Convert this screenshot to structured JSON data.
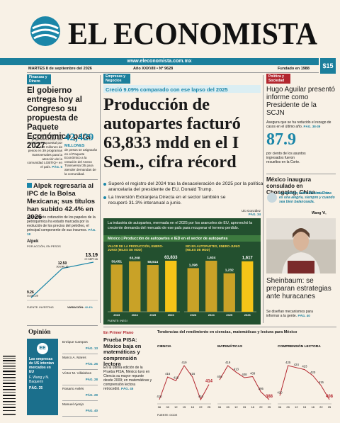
{
  "header": {
    "title": "EL ECONOMISTA",
    "website": "www.eleconomista.com.mx",
    "date": "MARTES 8 de septiembre del 2026",
    "issue": "Año XXXVIII • Nº 9628",
    "founded": "Fundado en 1988",
    "price": "$15"
  },
  "left": {
    "section": "Finanzas y Dinero",
    "headline": "El gobierno entrega hoy al Congreso su propuesta de Paquete Económico para 2027",
    "bullet": "Por primera vez se propondrá incluir una partida presupuestal por 42,429 millones de pesos en 39 programas transversales para la atención de la comunidad LGBTIQ+ en el país.",
    "page_ref": "PÁG. 5",
    "stat": {
      "number": "42,429",
      "unit": "MILLONES",
      "text": "de pesos se asignarán en el Paquete Económico a la creación del Anexo Transversal 35 para atender demandas de la comunidad."
    },
    "alpek": {
      "headline": "Alpek regresaría al IPC de la Bolsa Mexicana; sus títulos han subido 42.4% en 2026",
      "text": "La creciente cotización de los papeles de la petroquímica ha estado marcada por la evolución de los precios del petróleo, el principal componente de sus insumos.",
      "page_ref": "PÁG. 18",
      "chart": {
        "title": "Alpek",
        "subtitle": "POR ACCIÓN, EN PESOS",
        "dates": [
          "31.DIC.25",
          "30.ENE.26",
          "07.SEPT.26"
        ],
        "values": [
          9.26,
          12.5,
          13.19
        ],
        "value_labels": [
          "9.26",
          "12.50",
          "13.19"
        ],
        "source": "FUENTE: INVESTING",
        "variation_label": "VARIACIÓN:",
        "variation": "42.4%"
      }
    },
    "opinion": {
      "title": "Opinión",
      "featured": {
        "text": "Las empresas de US intentan mercados en EU",
        "author": "F. Wang y N. Baquerín",
        "page": "PÁG. 35"
      },
      "columnists": [
        {
          "name": "Enrique Campos",
          "page": "PÁG. 13"
        },
        {
          "name": "Marco A. Mares",
          "page": "PÁG. 26"
        },
        {
          "name": "Víctor M. Villalobos",
          "page": "PÁG. 28"
        },
        {
          "name": "Rosario Avilés",
          "page": "PÁG. 29"
        },
        {
          "name": "Manuel Ajenjo",
          "page": "PÁG. 40"
        }
      ]
    }
  },
  "center": {
    "section": "Empresas y Negocios",
    "kicker": "Creció 9.09% comparado con ese lapso del 2025",
    "headline": "Producción de autopartes facturó 63,833 mdd en el I Sem., cifra récord",
    "bullets": [
      "Superó el registro del 2024 tras la desaceleración de 2025 por la política arancelaria del presidente de EU, Donald Trump.",
      "La Inversión Extranjera Directa en el sector también se recuperó 31.3% interanual a junio."
    ],
    "byline": "Ulo González",
    "page_ref": "PÁG. 34",
    "infographic": {
      "intro": "La industria de autopartes, mermada en el 2025 por los aranceles de EU, aprovechó la creciente demanda del mercado de ese país para recuperar el terreno perdido.",
      "title": "México | Producción de autopartes e IED en el sector de autopartes",
      "charts": [
        {
          "title": "VALOR DE LA PRODUCCIÓN, ENERO-JUNIO (MILES DE MDD)",
          "categories": [
            "2023",
            "2024",
            "2025",
            "2026"
          ],
          "values": [
            59051,
            63208,
            58514,
            63833
          ],
          "value_labels": [
            "59,051",
            "63,208",
            "58,514",
            "63,833"
          ]
        },
        {
          "title": "IED EN AUTOPARTES, ENERO-JUNIO (MILES DE MDD)",
          "categories": [
            "2023",
            "2024",
            "2025",
            "2026"
          ],
          "values": [
            1398,
            1634,
            1232,
            1617
          ],
          "value_labels": [
            "1,398",
            "1,634",
            "1,232",
            "1,617"
          ]
        }
      ],
      "source": "FUENTE: INEGI"
    }
  },
  "pisa": {
    "section": "En Primer Plano",
    "headline": "Prueba PISA: México baja en matemáticas y comprensión lectora",
    "bullet": "En la última edición de la Prueba PISA, México tuvo en Ciencia su mayor repunte desde 2009; en matemáticas y comprensión lectora retrocedió.",
    "page_ref": "PÁG. 45",
    "charts_title": "Tendencias del rendimiento en ciencias, matemáticas y lectura para México",
    "charts": [
      {
        "title": "CIENCIA",
        "categories": [
          "06",
          "09",
          "12",
          "15",
          "18",
          "22",
          "25"
        ],
        "values": [
          410,
          416,
          415,
          419,
          416,
          410,
          414
        ]
      },
      {
        "title": "MATEMÁTICAS",
        "categories": [
          "06",
          "09",
          "12",
          "15",
          "18",
          "22",
          "25"
        ],
        "values": [
          406,
          419,
          413,
          408,
          409,
          395,
          388
        ]
      },
      {
        "title": "COMPRENSIÓN LECTORA",
        "categories": [
          "06",
          "09",
          "12",
          "15",
          "18",
          "22",
          "25"
        ],
        "values": [
          410,
          425,
          424,
          423,
          420,
          415,
          408
        ]
      }
    ],
    "source": "FUENTE: OCDE"
  },
  "right": {
    "section": "Política y Sociedad",
    "headline": "Hugo Aguilar presentó informe como Presidente de la SCJN",
    "bullet": "Asegura que se ha reducido el rezago de casos en el último año.",
    "page_ref": "PÁG. 38-39",
    "stat": {
      "number": "87.9",
      "text": "por ciento de los asuntos ingresados fueron resueltos en la Corte."
    },
    "china": {
      "headline": "México inaugura consulado en Chongqing, China",
      "page_ref": "PÁG. 42",
      "quote": "La relación entre México-China es una alegría, siempre y cuando sea bien balanceada.",
      "author": "Wang Yi,"
    },
    "sheinbaum": {
      "headline": "Sheinbaum: se preparan estrategias ante huracanes",
      "bullet": "Se diseñan mecanismos para informar a la gente.",
      "page_ref": "PÁG. 40"
    }
  }
}
